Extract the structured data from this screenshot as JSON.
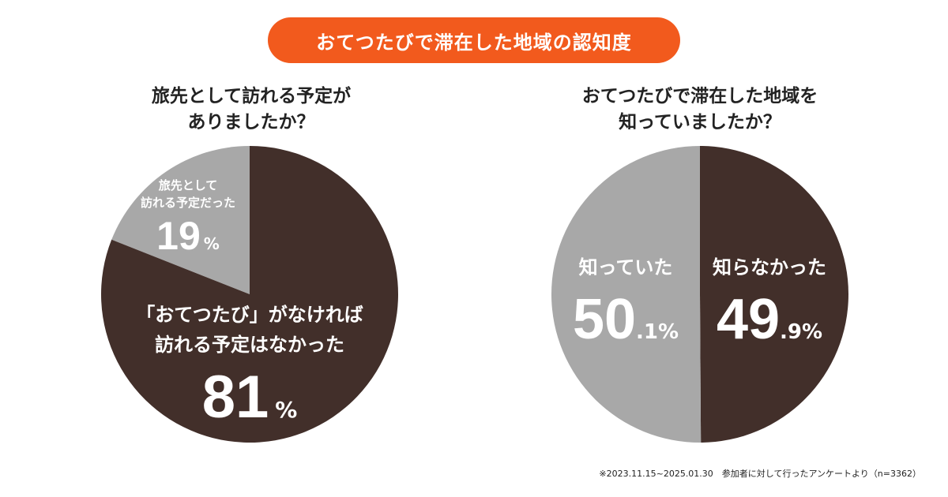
{
  "title": "おてつたびで滞在した地域の認知度",
  "colors": {
    "accent": "#f25a1d",
    "dark": "#422f2a",
    "gray": "#a8a8a8",
    "text": "#222222"
  },
  "chart_data": [
    {
      "type": "pie",
      "title": [
        "旅先として訪れる予定が",
        "ありましたか？"
      ],
      "slices": [
        {
          "name": "旅先として訪れる予定だった",
          "label_lines": [
            "旅先として",
            "訪れる予定だった"
          ],
          "value": 19,
          "value_text": "19",
          "unit": "%",
          "color": "#a8a8a8"
        },
        {
          "name": "「おてつたび」がなければ訪れる予定はなかった",
          "label_lines": [
            "「おてつたび」がなければ",
            "訪れる予定はなかった"
          ],
          "value": 81,
          "value_text": "81",
          "unit": "%",
          "color": "#422f2a"
        }
      ]
    },
    {
      "type": "pie",
      "title": [
        "おてつたびで滞在した地域を",
        "知っていましたか？"
      ],
      "slices": [
        {
          "name": "知らなかった",
          "label_lines": [
            "知らなかった"
          ],
          "value": 49.9,
          "value_text": "49",
          "decimal_text": ".9%",
          "color": "#422f2a"
        },
        {
          "name": "知っていた",
          "label_lines": [
            "知っていた"
          ],
          "value": 50.1,
          "value_text": "50",
          "decimal_text": ".1%",
          "color": "#a8a8a8"
        }
      ]
    }
  ],
  "footnote": "※2023.11.15~2025.01.30　参加者に対して行ったアンケートより（n=3362）"
}
